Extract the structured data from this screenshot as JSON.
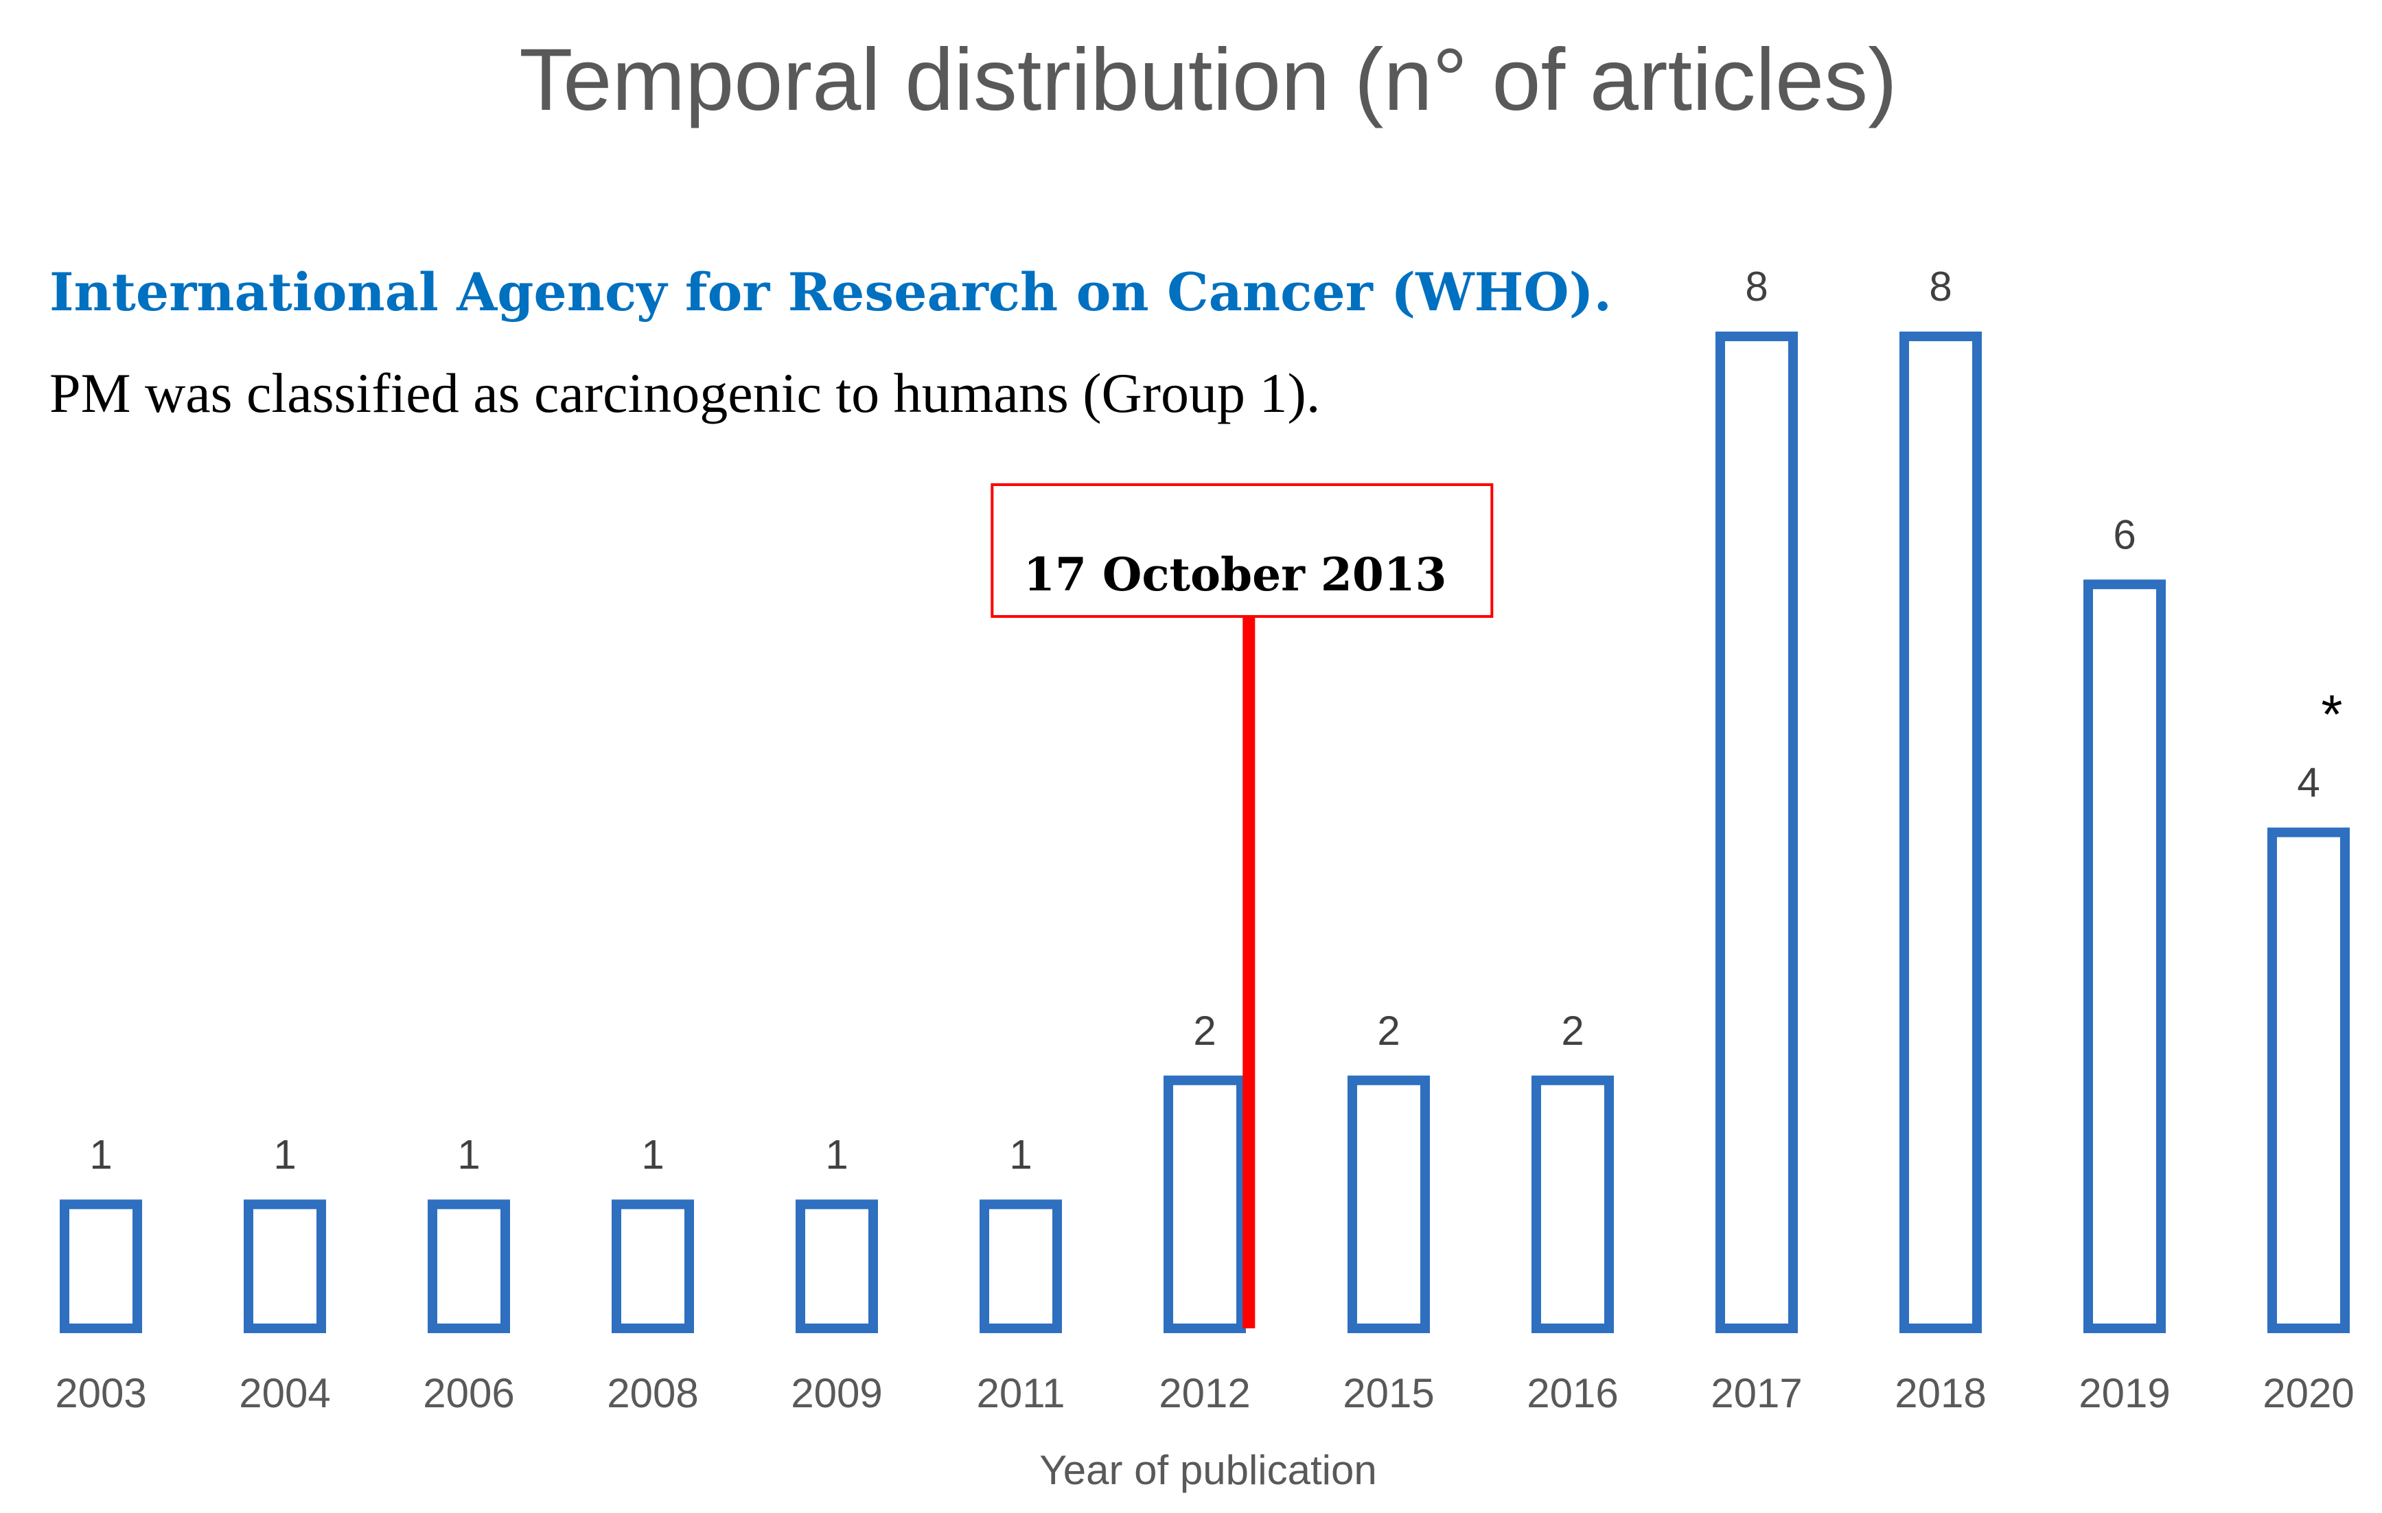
{
  "chart_data": {
    "type": "bar",
    "title": "Temporal distribution (n° of articles)",
    "xlabel": "Year of publication",
    "ylabel": "",
    "categories": [
      "2003",
      "2004",
      "2006",
      "2008",
      "2009",
      "2011",
      "2012",
      "2015",
      "2016",
      "2017",
      "2018",
      "2019",
      "2020"
    ],
    "values": [
      1,
      1,
      1,
      1,
      1,
      1,
      2,
      2,
      2,
      8,
      8,
      6,
      4
    ],
    "ylim": [
      0,
      8
    ],
    "grid": false,
    "bar_color": "#2e6fc0",
    "event": {
      "label": "17 October 2013",
      "after_category_index": 6,
      "color": "#ff0000"
    },
    "annotation": {
      "heading": "International Agency for Research on Cancer (WHO).",
      "text": "PM was classified as carcinogenic to humans (Group 1).",
      "heading_color": "#0070c0"
    },
    "note_marker": {
      "symbol": "*",
      "category_index": 12
    }
  }
}
